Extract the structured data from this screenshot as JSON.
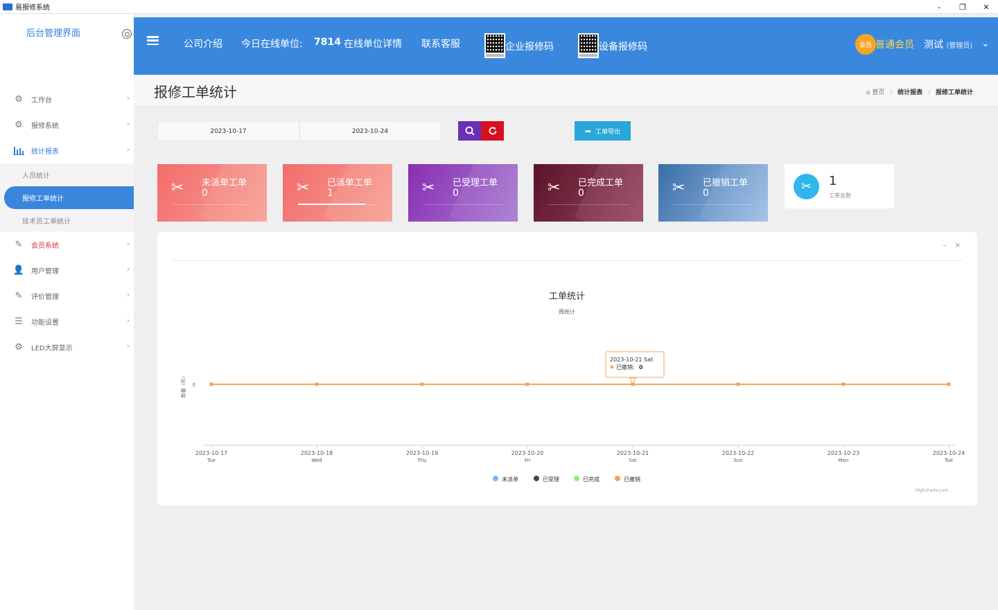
{
  "window": {
    "title": "易报修系统",
    "min": "–",
    "max": "❐",
    "close": "✕"
  },
  "sidebar": {
    "brand": "后台管理界面",
    "items": [
      {
        "label": "工作台",
        "icon": "gears-icon"
      },
      {
        "label": "报修系统",
        "icon": "gears-icon"
      },
      {
        "label": "统计报表",
        "icon": "bar-chart-icon"
      },
      {
        "label": "会员系统",
        "icon": "edit-icon"
      },
      {
        "label": "用户管理",
        "icon": "users-icon"
      },
      {
        "label": "评价管理",
        "icon": "edit-icon"
      },
      {
        "label": "功能设置",
        "icon": "sliders-icon"
      },
      {
        "label": "LED大屏显示",
        "icon": "gears-icon"
      }
    ],
    "subitems": [
      "人员统计",
      "报修工单统计",
      "技术员工单统计"
    ]
  },
  "header": {
    "company": "公司介绍",
    "online_label": "今日在线单位:",
    "online_count": "7814",
    "online_detail": "在线单位详情",
    "contact": "联系客服",
    "enterprise_code": "企业报修码",
    "device_code": "设备报修码",
    "member_badge": "会员",
    "member_text": "普通会员",
    "user_name": "测试",
    "user_role": "(管理员)"
  },
  "page": {
    "title": "报修工单统计",
    "crumbs": {
      "home": "首页",
      "level1": "统计报表",
      "level2": "报修工单统计"
    }
  },
  "filters": {
    "start_date": "2023-10-17",
    "end_date": "2023-10-24",
    "export_label": "工单导出"
  },
  "cards": [
    {
      "label": "未派单工单",
      "value": "0",
      "color_from": "#f36c6c",
      "color_to": "#f6a194",
      "progress": 0
    },
    {
      "label": "已派单工单",
      "value": "1",
      "color_from": "#f36c6c",
      "color_to": "#f6a194",
      "progress": 0.85
    },
    {
      "label": "已受理工单",
      "value": "0",
      "color_from": "#8a2fb3",
      "color_to": "#a67ad0",
      "progress": 0
    },
    {
      "label": "已完成工单",
      "value": "0",
      "color_from": "#5a1327",
      "color_to": "#9a4662",
      "progress": 0
    },
    {
      "label": "已撤销工单",
      "value": "0",
      "color_from": "#3a6ea8",
      "color_to": "#9ebfe8",
      "progress": 0
    }
  ],
  "total": {
    "value": "1",
    "caption": "工单总数"
  },
  "chart_data": {
    "type": "line",
    "title": "工单统计",
    "subtitle": "周统计",
    "ylabel": "数量（件）",
    "x": [
      "2023-10-17",
      "2023-10-18",
      "2023-10-19",
      "2023-10-20",
      "2023-10-21",
      "2023-10-22",
      "2023-10-23",
      "2023-10-24"
    ],
    "x_weekday": [
      "Tue",
      "Wed",
      "Thu",
      "Fri",
      "Sat",
      "Sun",
      "Mon",
      "Tue"
    ],
    "y_ticks": [
      "0"
    ],
    "series": [
      {
        "name": "未派单",
        "color": "#7cb5ec",
        "values": [
          0,
          0,
          0,
          0,
          0,
          0,
          0,
          0
        ]
      },
      {
        "name": "已受理",
        "color": "#434348",
        "values": [
          0,
          0,
          0,
          0,
          0,
          0,
          0,
          0
        ]
      },
      {
        "name": "已完成",
        "color": "#90ed7d",
        "values": [
          0,
          0,
          0,
          0,
          0,
          0,
          0,
          0
        ]
      },
      {
        "name": "已撤销",
        "color": "#f7a35c",
        "values": [
          0,
          0,
          0,
          0,
          0,
          0,
          0,
          0
        ]
      }
    ],
    "tooltip": {
      "date": "2023-10-21 Sat",
      "series": "已撤销",
      "value": "0"
    },
    "credits": "Highcharts.com",
    "panel_tools": {
      "minimize": "–",
      "close": "×"
    }
  }
}
